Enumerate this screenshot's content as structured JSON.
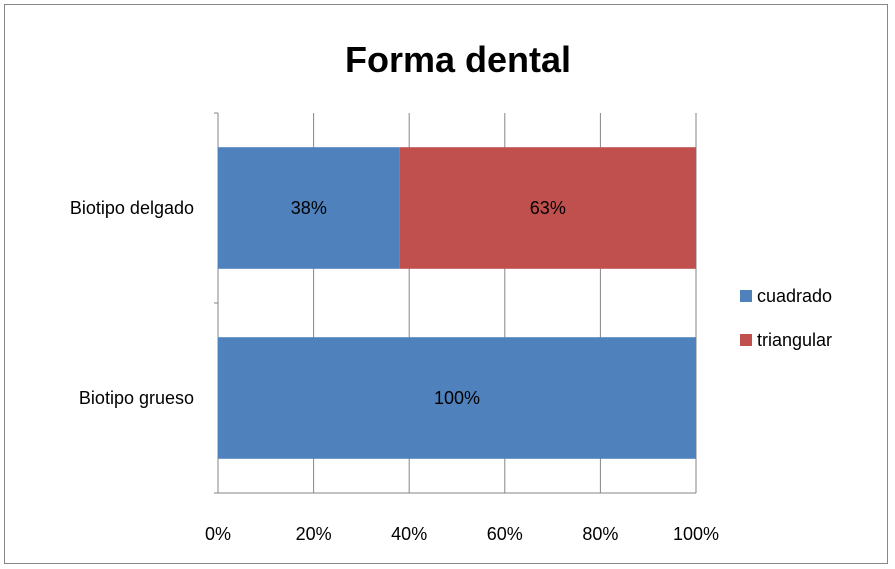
{
  "chart_data": {
    "type": "bar",
    "orientation": "horizontal",
    "stacked": "percent",
    "title": "Forma dental",
    "categories": [
      "Biotipo delgado",
      "Biotipo grueso"
    ],
    "series": [
      {
        "name": "cuadrado",
        "color": "#4F81BD",
        "values": [
          38,
          100
        ],
        "labels": [
          "38%",
          "100%"
        ]
      },
      {
        "name": "triangular",
        "color": "#C0504D",
        "values": [
          63,
          0
        ],
        "labels": [
          "63%",
          ""
        ]
      }
    ],
    "xlim": [
      0,
      100
    ],
    "xticks": [
      "0%",
      "20%",
      "40%",
      "60%",
      "80%",
      "100%"
    ],
    "grid": true,
    "legend_position": "right"
  }
}
